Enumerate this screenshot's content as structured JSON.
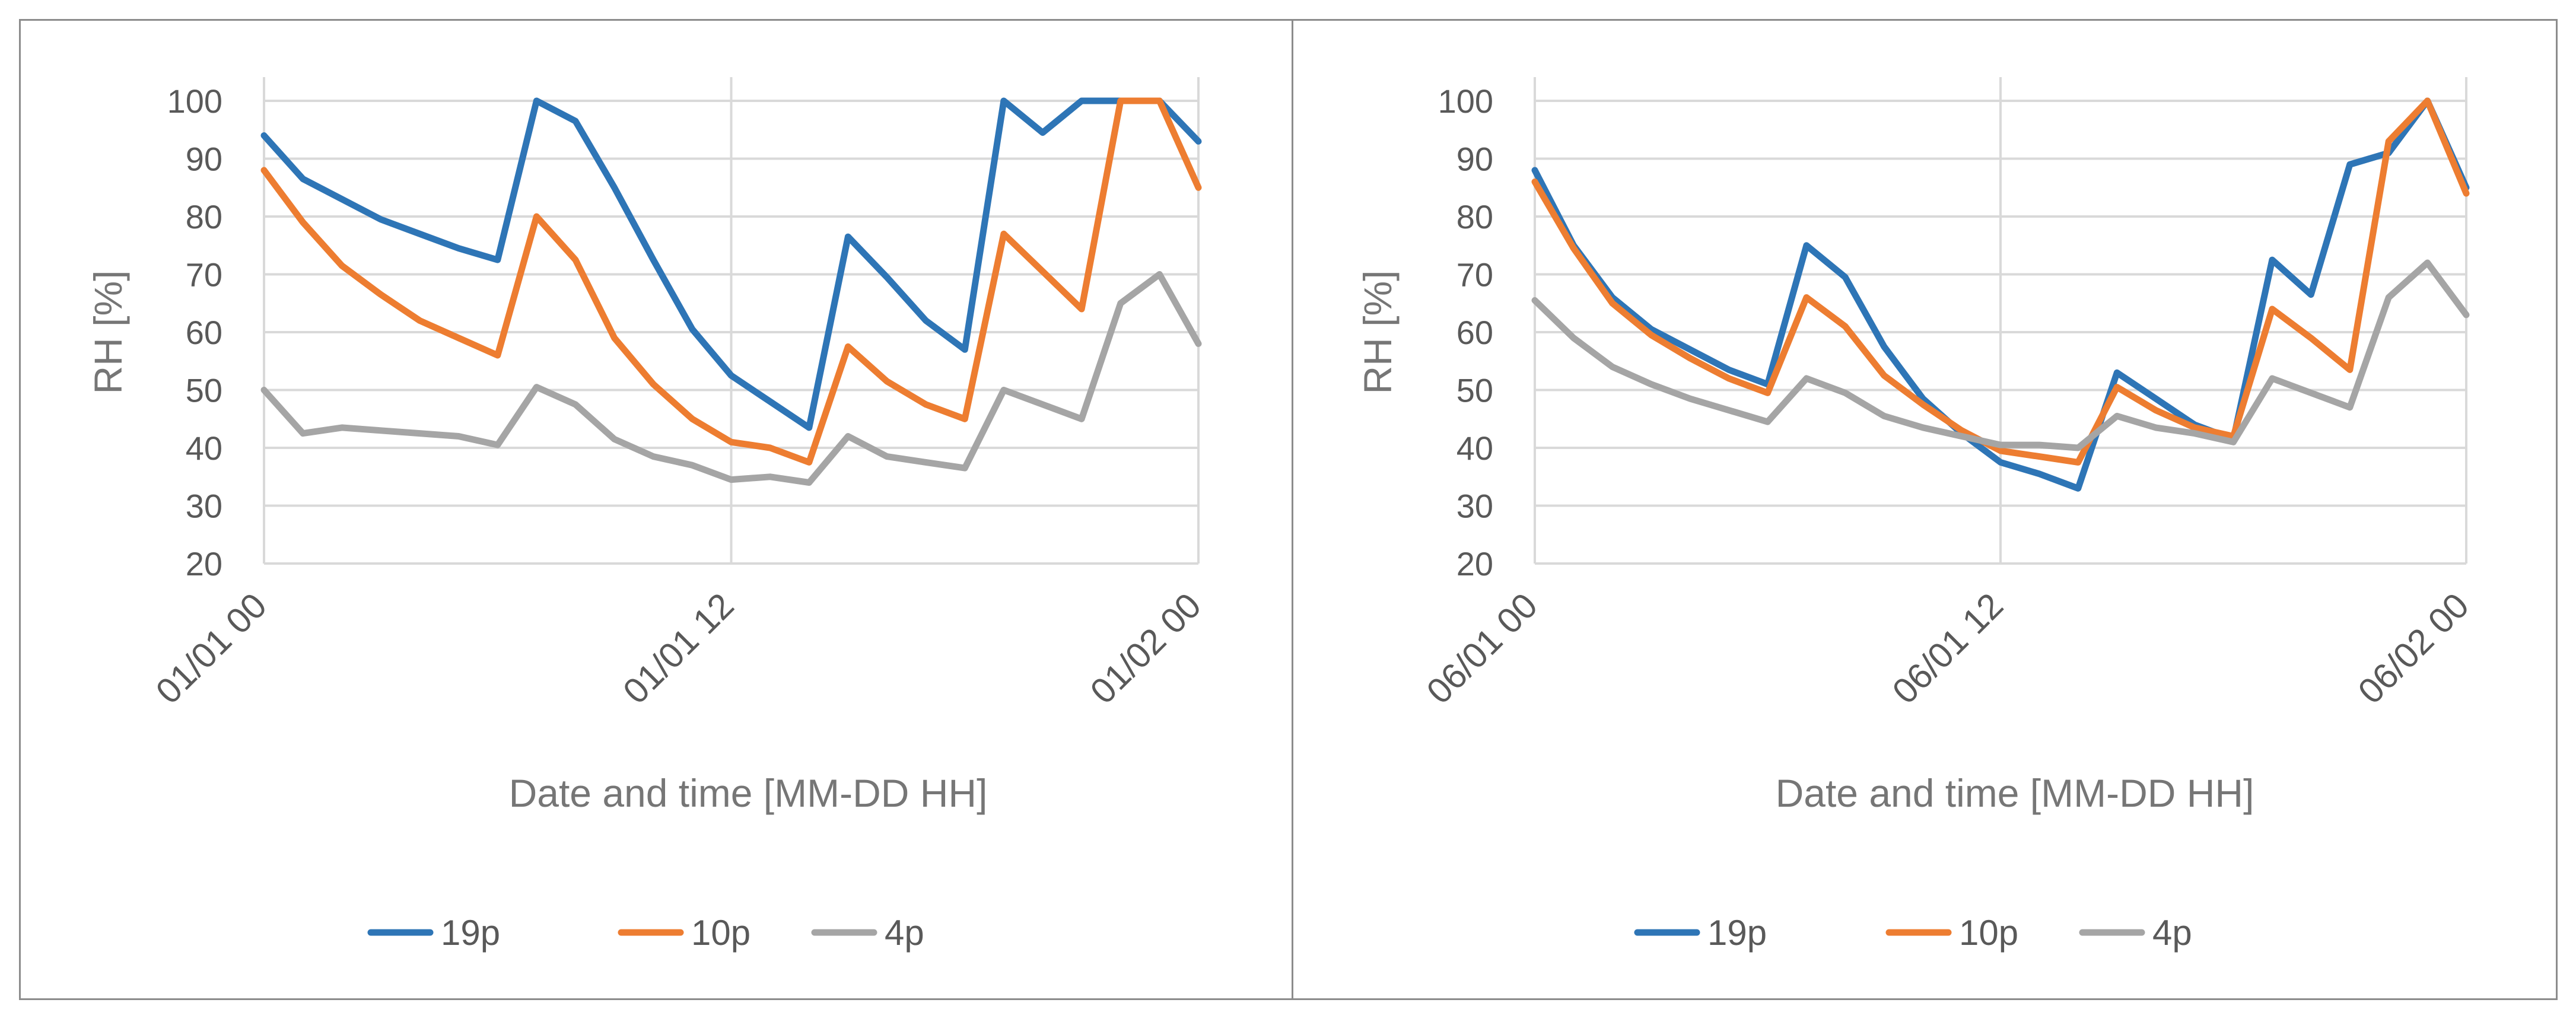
{
  "chart_data": [
    {
      "type": "line",
      "title": "",
      "xlabel": "Date and time [MM-DD HH]",
      "ylabel": "RH [%]",
      "ylim": [
        20,
        100
      ],
      "yticks": [
        20,
        30,
        40,
        50,
        60,
        70,
        80,
        90,
        100
      ],
      "xlim": [
        0,
        24
      ],
      "xticks": [
        {
          "x": 0,
          "label": "01/01 00"
        },
        {
          "x": 12,
          "label": "01/01 12"
        },
        {
          "x": 24,
          "label": "01/02 00"
        }
      ],
      "grid": true,
      "legend_position": "bottom",
      "x": [
        0,
        1,
        2,
        3,
        4,
        5,
        6,
        7,
        8,
        9,
        10,
        11,
        12,
        13,
        14,
        15,
        16,
        17,
        18,
        19,
        20,
        21,
        22,
        23,
        24
      ],
      "series": [
        {
          "name": "19p",
          "color": "#2e75b6",
          "values": [
            94,
            86.5,
            83,
            79.5,
            77,
            74.5,
            72.5,
            100,
            96.5,
            85,
            72.5,
            60.5,
            52.5,
            48,
            43.5,
            76.5,
            69.5,
            62,
            57,
            100,
            94.5,
            100,
            100,
            100,
            93
          ]
        },
        {
          "name": "10p",
          "color": "#ed7d31",
          "values": [
            88,
            79,
            71.5,
            66.5,
            62,
            59,
            56,
            80,
            72.5,
            59,
            51,
            45,
            41,
            40,
            37.5,
            57.5,
            51.5,
            47.5,
            45,
            77,
            70.5,
            64,
            100,
            100,
            85
          ]
        },
        {
          "name": "4p",
          "color": "#a5a5a5",
          "values": [
            50,
            42.5,
            43.5,
            43,
            42.5,
            42,
            40.5,
            50.5,
            47.5,
            41.5,
            38.5,
            37,
            34.5,
            35,
            34,
            42,
            38.5,
            37.5,
            36.5,
            50,
            47.5,
            45,
            65,
            70,
            58
          ]
        }
      ]
    },
    {
      "type": "line",
      "title": "",
      "xlabel": "Date and time [MM-DD HH]",
      "ylabel": "RH [%]",
      "ylim": [
        20,
        100
      ],
      "yticks": [
        20,
        30,
        40,
        50,
        60,
        70,
        80,
        90,
        100
      ],
      "xlim": [
        0,
        24
      ],
      "xticks": [
        {
          "x": 0,
          "label": "06/01 00"
        },
        {
          "x": 12,
          "label": "06/01 12"
        },
        {
          "x": 24,
          "label": "06/02 00"
        }
      ],
      "grid": true,
      "legend_position": "bottom",
      "x": [
        0,
        1,
        2,
        3,
        4,
        5,
        6,
        7,
        8,
        9,
        10,
        11,
        12,
        13,
        14,
        15,
        16,
        17,
        18,
        19,
        20,
        21,
        22,
        23,
        24
      ],
      "series": [
        {
          "name": "19p",
          "color": "#2e75b6",
          "values": [
            88,
            75,
            66,
            60.5,
            57,
            53.5,
            51,
            75,
            69.5,
            57.5,
            48.5,
            42.5,
            37.5,
            35.5,
            33,
            53,
            48.5,
            44,
            41.5,
            72.5,
            66.5,
            89,
            91,
            100,
            85
          ]
        },
        {
          "name": "10p",
          "color": "#ed7d31",
          "values": [
            86,
            74.5,
            65,
            59.5,
            55.5,
            52,
            49.5,
            66,
            61,
            52.5,
            47.5,
            43,
            39.5,
            38.5,
            37.5,
            50.5,
            46.5,
            43.5,
            42,
            64,
            59,
            53.5,
            93,
            100,
            84
          ]
        },
        {
          "name": "4p",
          "color": "#a5a5a5",
          "values": [
            65.5,
            59,
            54,
            51,
            48.5,
            46.5,
            44.5,
            52,
            49.5,
            45.5,
            43.5,
            42,
            40.5,
            40.5,
            40,
            45.5,
            43.5,
            42.5,
            41,
            52,
            49.5,
            47,
            66,
            72,
            63
          ]
        }
      ]
    }
  ]
}
